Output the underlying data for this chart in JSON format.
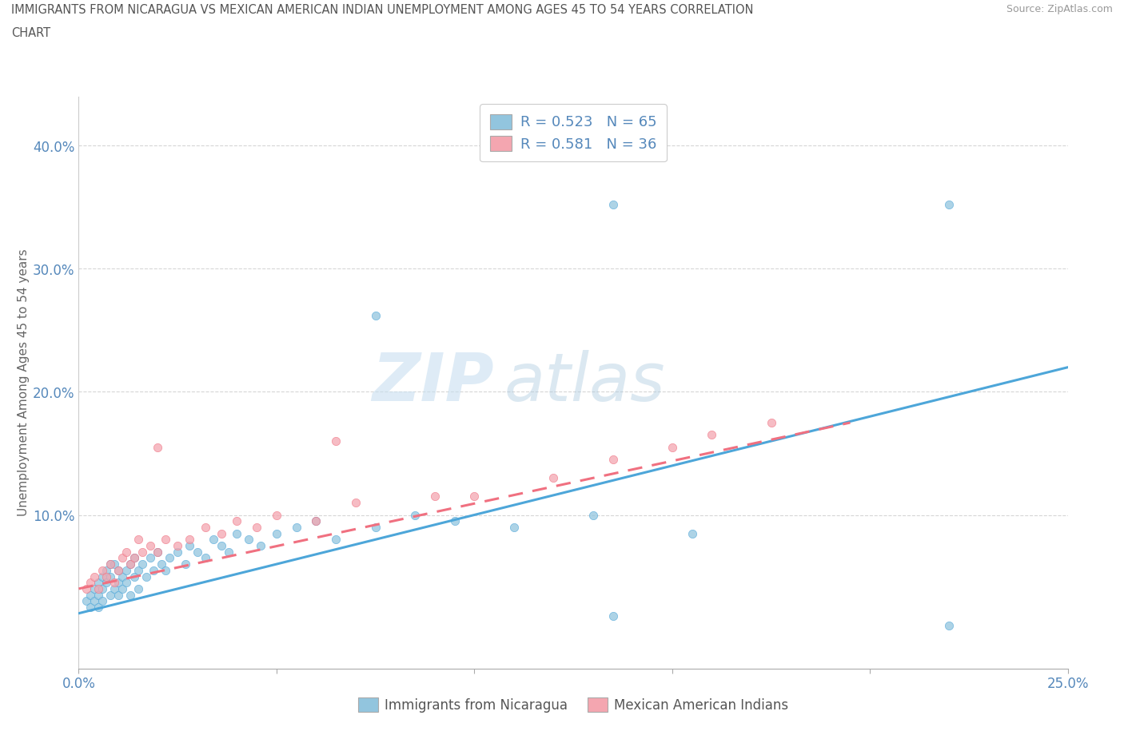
{
  "title_line1": "IMMIGRANTS FROM NICARAGUA VS MEXICAN AMERICAN INDIAN UNEMPLOYMENT AMONG AGES 45 TO 54 YEARS CORRELATION",
  "title_line2": "CHART",
  "source_text": "Source: ZipAtlas.com",
  "ylabel": "Unemployment Among Ages 45 to 54 years",
  "xlim": [
    0.0,
    0.25
  ],
  "ylim": [
    -0.025,
    0.44
  ],
  "legend_r1": "R = 0.523",
  "legend_n1": "N = 65",
  "legend_r2": "R = 0.581",
  "legend_n2": "N = 36",
  "color_blue": "#92C5DE",
  "color_pink": "#F4A6B0",
  "color_blue_line": "#4DA6D9",
  "color_pink_line": "#F07080",
  "watermark_zip": "ZIP",
  "watermark_atlas": "atlas",
  "blue_line_x": [
    0.0,
    0.25
  ],
  "blue_line_y": [
    0.02,
    0.22
  ],
  "pink_line_x": [
    0.0,
    0.195
  ],
  "pink_line_y": [
    0.04,
    0.175
  ],
  "blue_x": [
    0.002,
    0.003,
    0.003,
    0.004,
    0.004,
    0.005,
    0.005,
    0.005,
    0.006,
    0.006,
    0.006,
    0.007,
    0.007,
    0.008,
    0.008,
    0.008,
    0.009,
    0.009,
    0.01,
    0.01,
    0.01,
    0.011,
    0.011,
    0.012,
    0.012,
    0.013,
    0.013,
    0.014,
    0.014,
    0.015,
    0.015,
    0.016,
    0.017,
    0.018,
    0.019,
    0.02,
    0.021,
    0.022,
    0.023,
    0.025,
    0.027,
    0.028,
    0.03,
    0.032,
    0.034,
    0.036,
    0.038,
    0.04,
    0.043,
    0.046,
    0.05,
    0.055,
    0.06,
    0.065,
    0.075,
    0.085,
    0.095,
    0.11,
    0.13,
    0.155,
    0.075,
    0.135,
    0.22,
    0.135,
    0.22
  ],
  "blue_y": [
    0.03,
    0.035,
    0.025,
    0.04,
    0.03,
    0.045,
    0.035,
    0.025,
    0.04,
    0.05,
    0.03,
    0.045,
    0.055,
    0.035,
    0.05,
    0.06,
    0.04,
    0.06,
    0.045,
    0.035,
    0.055,
    0.05,
    0.04,
    0.055,
    0.045,
    0.06,
    0.035,
    0.05,
    0.065,
    0.04,
    0.055,
    0.06,
    0.05,
    0.065,
    0.055,
    0.07,
    0.06,
    0.055,
    0.065,
    0.07,
    0.06,
    0.075,
    0.07,
    0.065,
    0.08,
    0.075,
    0.07,
    0.085,
    0.08,
    0.075,
    0.085,
    0.09,
    0.095,
    0.08,
    0.09,
    0.1,
    0.095,
    0.09,
    0.1,
    0.085,
    0.262,
    0.018,
    0.01,
    0.352,
    0.352
  ],
  "pink_x": [
    0.002,
    0.003,
    0.004,
    0.005,
    0.006,
    0.007,
    0.008,
    0.009,
    0.01,
    0.011,
    0.012,
    0.013,
    0.014,
    0.015,
    0.016,
    0.018,
    0.02,
    0.022,
    0.025,
    0.028,
    0.032,
    0.036,
    0.04,
    0.045,
    0.05,
    0.06,
    0.07,
    0.09,
    0.1,
    0.12,
    0.135,
    0.15,
    0.16,
    0.175,
    0.02,
    0.065
  ],
  "pink_y": [
    0.04,
    0.045,
    0.05,
    0.04,
    0.055,
    0.05,
    0.06,
    0.045,
    0.055,
    0.065,
    0.07,
    0.06,
    0.065,
    0.08,
    0.07,
    0.075,
    0.07,
    0.08,
    0.075,
    0.08,
    0.09,
    0.085,
    0.095,
    0.09,
    0.1,
    0.095,
    0.11,
    0.115,
    0.115,
    0.13,
    0.145,
    0.155,
    0.165,
    0.175,
    0.155,
    0.16
  ]
}
